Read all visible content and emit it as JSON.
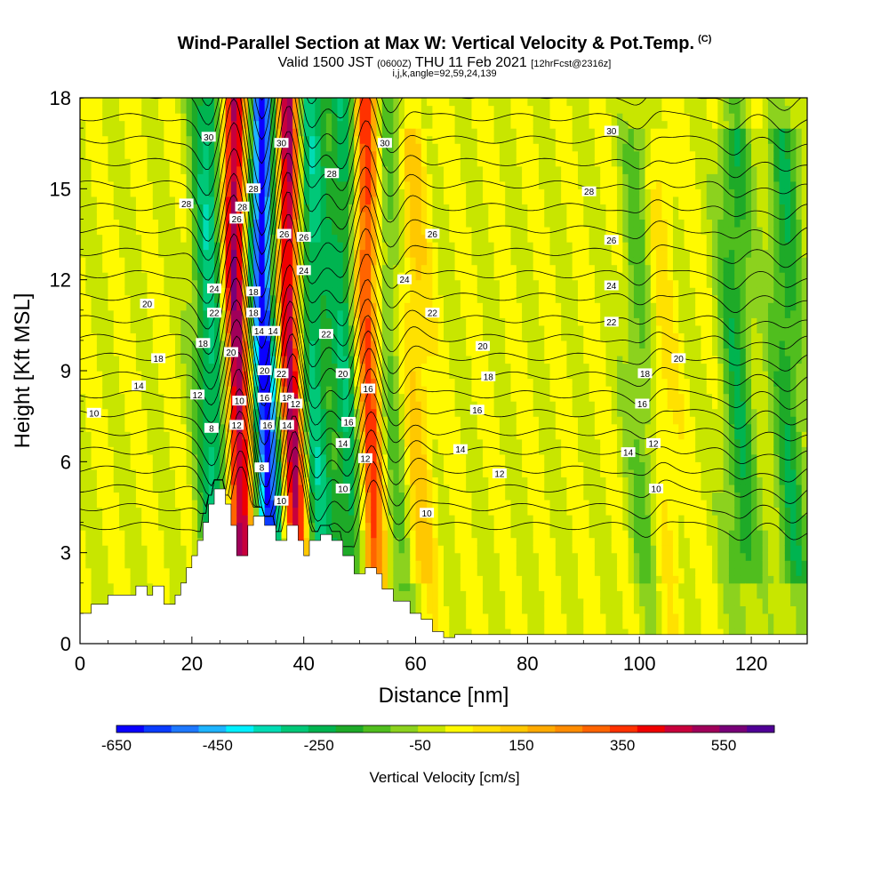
{
  "header": {
    "title": "Wind-Parallel Section at Max W: Vertical Velocity & Pot.Temp.",
    "copyright": "(C)",
    "valid_prefix": "Valid 1500 JST",
    "valid_utc": "(0600Z)",
    "valid_date": "THU 11 Feb 2021",
    "forecast": "[12hrFcst@2316z]",
    "indices": "i,j,k,angle=92,59,24,139"
  },
  "chart_data": {
    "type": "heatmap",
    "xlabel": "Distance [nm]",
    "ylabel": "Height [Kft MSL]",
    "xlim": [
      0,
      130
    ],
    "ylim": [
      0,
      18
    ],
    "x_ticks": [
      "0",
      "20",
      "40",
      "60",
      "80",
      "100",
      "120"
    ],
    "y_ticks": [
      "0",
      "3",
      "6",
      "9",
      "12",
      "15",
      "18"
    ],
    "colorbar": {
      "label": "Vertical Velocity [cm/s]",
      "tick_labels": [
        "-650",
        "-450",
        "-250",
        "-50",
        "150",
        "350",
        "550"
      ],
      "range": [
        -650,
        650
      ],
      "colors": [
        "#0a00ff",
        "#0a3cff",
        "#1e78ff",
        "#1eb4ff",
        "#00f0ff",
        "#00dcb4",
        "#00c878",
        "#00b450",
        "#1eaa28",
        "#50be1e",
        "#8cd21e",
        "#c8e600",
        "#fffa00",
        "#ffe100",
        "#ffc800",
        "#ffaa00",
        "#ff8c00",
        "#ff6400",
        "#ff3200",
        "#f00000",
        "#c8003c",
        "#a0005a",
        "#780078",
        "#500096"
      ]
    },
    "terrain_kft": [
      [
        0,
        1.0
      ],
      [
        2,
        1.0
      ],
      [
        2,
        1.3
      ],
      [
        5,
        1.3
      ],
      [
        5,
        1.6
      ],
      [
        10,
        1.6
      ],
      [
        10,
        1.9
      ],
      [
        12,
        1.9
      ],
      [
        12,
        1.6
      ],
      [
        13,
        1.6
      ],
      [
        13,
        1.9
      ],
      [
        15,
        1.9
      ],
      [
        15,
        1.3
      ],
      [
        17,
        1.3
      ],
      [
        17,
        1.6
      ],
      [
        18,
        1.6
      ],
      [
        18,
        2.0
      ],
      [
        19,
        2.0
      ],
      [
        19,
        2.5
      ],
      [
        20,
        2.5
      ],
      [
        20,
        2.9
      ],
      [
        21,
        2.9
      ],
      [
        21,
        3.4
      ],
      [
        22,
        3.4
      ],
      [
        22,
        4.0
      ],
      [
        23,
        4.0
      ],
      [
        23,
        4.6
      ],
      [
        24,
        4.6
      ],
      [
        24,
        5.1
      ],
      [
        26,
        5.1
      ],
      [
        26,
        4.6
      ],
      [
        27,
        4.6
      ],
      [
        27,
        3.9
      ],
      [
        28,
        3.9
      ],
      [
        28,
        2.9
      ],
      [
        30,
        2.9
      ],
      [
        30,
        3.9
      ],
      [
        31,
        3.9
      ],
      [
        31,
        4.2
      ],
      [
        33,
        4.2
      ],
      [
        33,
        3.9
      ],
      [
        35,
        3.9
      ],
      [
        35,
        3.4
      ],
      [
        37,
        3.4
      ],
      [
        37,
        3.9
      ],
      [
        39,
        3.9
      ],
      [
        39,
        3.4
      ],
      [
        40,
        3.4
      ],
      [
        40,
        2.9
      ],
      [
        41,
        2.9
      ],
      [
        41,
        3.4
      ],
      [
        43,
        3.4
      ],
      [
        43,
        3.6
      ],
      [
        45,
        3.6
      ],
      [
        45,
        3.4
      ],
      [
        47,
        3.4
      ],
      [
        47,
        2.9
      ],
      [
        49,
        2.9
      ],
      [
        49,
        2.3
      ],
      [
        51,
        2.3
      ],
      [
        51,
        2.5
      ],
      [
        53,
        2.5
      ],
      [
        53,
        2.3
      ],
      [
        54,
        2.3
      ],
      [
        54,
        1.8
      ],
      [
        56,
        1.8
      ],
      [
        56,
        1.4
      ],
      [
        59,
        1.4
      ],
      [
        59,
        1.0
      ],
      [
        61,
        1.0
      ],
      [
        61,
        0.8
      ],
      [
        63,
        0.8
      ],
      [
        63,
        0.4
      ],
      [
        65,
        0.4
      ],
      [
        65,
        0.2
      ],
      [
        67,
        0.2
      ],
      [
        67,
        0.3
      ],
      [
        130,
        0.3
      ]
    ],
    "velocity_features": [
      {
        "x": 23,
        "w": -300
      },
      {
        "x": 27.5,
        "w": 550
      },
      {
        "x": 32.5,
        "w": -650
      },
      {
        "x": 37.3,
        "w": 550
      },
      {
        "x": 41,
        "w": -300
      },
      {
        "x": 47,
        "w": -250
      },
      {
        "x": 51,
        "w": 400
      },
      {
        "x": 55.5,
        "w": -150
      },
      {
        "x": 59,
        "w": 150
      },
      {
        "x": 100,
        "w": -150
      },
      {
        "x": 103,
        "w": 100
      },
      {
        "x": 117,
        "w": -200
      },
      {
        "x": 126,
        "w": -200
      }
    ],
    "theta_levels": [
      10,
      12,
      14,
      16,
      18,
      20,
      22,
      24,
      26,
      28,
      30
    ],
    "theta_labels": [
      {
        "text": "30",
        "x": 23,
        "y": 16.7
      },
      {
        "text": "30",
        "x": 36,
        "y": 16.5
      },
      {
        "text": "30",
        "x": 54.5,
        "y": 16.5
      },
      {
        "text": "30",
        "x": 95,
        "y": 16.9
      },
      {
        "text": "28",
        "x": 19,
        "y": 14.5
      },
      {
        "text": "28",
        "x": 31,
        "y": 15.0
      },
      {
        "text": "28",
        "x": 29,
        "y": 14.4
      },
      {
        "text": "28",
        "x": 45,
        "y": 15.5
      },
      {
        "text": "28",
        "x": 91,
        "y": 14.9
      },
      {
        "text": "26",
        "x": 28,
        "y": 14.0
      },
      {
        "text": "26",
        "x": 36.5,
        "y": 13.5
      },
      {
        "text": "26",
        "x": 40,
        "y": 13.4
      },
      {
        "text": "26",
        "x": 63,
        "y": 13.5
      },
      {
        "text": "26",
        "x": 95,
        "y": 13.3
      },
      {
        "text": "24",
        "x": 24,
        "y": 11.7
      },
      {
        "text": "24",
        "x": 40,
        "y": 12.3
      },
      {
        "text": "24",
        "x": 58,
        "y": 12.0
      },
      {
        "text": "24",
        "x": 95,
        "y": 11.8
      },
      {
        "text": "22",
        "x": 24,
        "y": 10.9
      },
      {
        "text": "22",
        "x": 44,
        "y": 10.2
      },
      {
        "text": "22",
        "x": 63,
        "y": 10.9
      },
      {
        "text": "22",
        "x": 95,
        "y": 10.6
      },
      {
        "text": "22",
        "x": 36,
        "y": 8.9
      },
      {
        "text": "20",
        "x": 12,
        "y": 11.2
      },
      {
        "text": "20",
        "x": 27,
        "y": 9.6
      },
      {
        "text": "20",
        "x": 33,
        "y": 9.0
      },
      {
        "text": "20",
        "x": 47,
        "y": 8.9
      },
      {
        "text": "20",
        "x": 72,
        "y": 9.8
      },
      {
        "text": "20",
        "x": 107,
        "y": 9.4
      },
      {
        "text": "18",
        "x": 31,
        "y": 11.6
      },
      {
        "text": "18",
        "x": 31,
        "y": 10.9
      },
      {
        "text": "18",
        "x": 22,
        "y": 9.9
      },
      {
        "text": "18",
        "x": 14,
        "y": 9.4
      },
      {
        "text": "18",
        "x": 37,
        "y": 8.1
      },
      {
        "text": "18",
        "x": 73,
        "y": 8.8
      },
      {
        "text": "18",
        "x": 101,
        "y": 8.9
      },
      {
        "text": "16",
        "x": 33,
        "y": 8.1
      },
      {
        "text": "16",
        "x": 33.5,
        "y": 7.2
      },
      {
        "text": "16",
        "x": 48,
        "y": 7.3
      },
      {
        "text": "16",
        "x": 51.5,
        "y": 8.4
      },
      {
        "text": "16",
        "x": 71,
        "y": 7.7
      },
      {
        "text": "16",
        "x": 100.5,
        "y": 7.9
      },
      {
        "text": "14",
        "x": 32,
        "y": 10.3
      },
      {
        "text": "14",
        "x": 34.5,
        "y": 10.3
      },
      {
        "text": "14",
        "x": 10.5,
        "y": 8.5
      },
      {
        "text": "14",
        "x": 37,
        "y": 7.2
      },
      {
        "text": "14",
        "x": 47,
        "y": 6.6
      },
      {
        "text": "14",
        "x": 68,
        "y": 6.4
      },
      {
        "text": "14",
        "x": 98,
        "y": 6.3
      },
      {
        "text": "12",
        "x": 21,
        "y": 8.2
      },
      {
        "text": "12",
        "x": 28,
        "y": 7.2
      },
      {
        "text": "12",
        "x": 38.5,
        "y": 7.9
      },
      {
        "text": "12",
        "x": 51,
        "y": 6.1
      },
      {
        "text": "12",
        "x": 75,
        "y": 5.6
      },
      {
        "text": "12",
        "x": 102.5,
        "y": 6.6
      },
      {
        "text": "10",
        "x": 28.5,
        "y": 8.0
      },
      {
        "text": "10",
        "x": 2.5,
        "y": 7.6
      },
      {
        "text": "10",
        "x": 36,
        "y": 4.7
      },
      {
        "text": "10",
        "x": 47,
        "y": 5.1
      },
      {
        "text": "10",
        "x": 62,
        "y": 4.3
      },
      {
        "text": "10",
        "x": 103,
        "y": 5.1
      },
      {
        "text": "8",
        "x": 23.5,
        "y": 7.1
      },
      {
        "text": "8",
        "x": 32.5,
        "y": 5.8
      }
    ]
  }
}
